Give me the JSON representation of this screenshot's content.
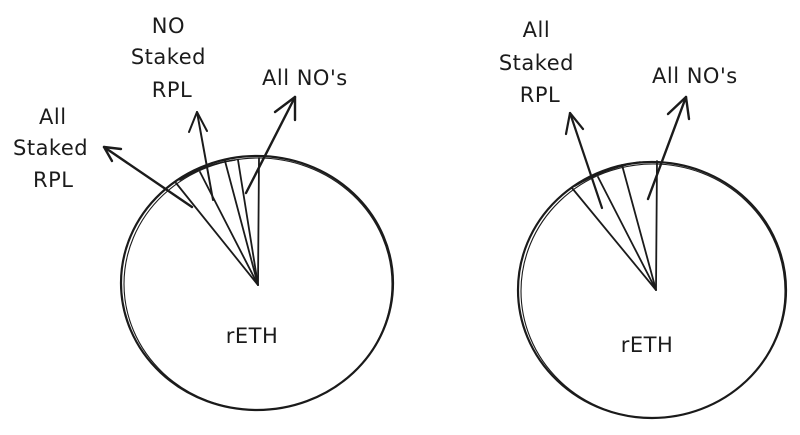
{
  "diagrams": [
    {
      "id": "left",
      "center_label": "rETH",
      "labels": {
        "all_staked_rpl": [
          "All",
          "Staked",
          "RPL"
        ],
        "no_staked_rpl": [
          "NO",
          "Staked",
          "RPL"
        ],
        "all_nos": "All NO's"
      }
    },
    {
      "id": "right",
      "center_label": "rETH",
      "labels": {
        "all_staked_rpl": [
          "All",
          "Staked",
          "RPL"
        ],
        "all_nos": "All NO's"
      }
    }
  ],
  "colors": {
    "ink": "#1b1b1b",
    "background": "#ffffff"
  }
}
